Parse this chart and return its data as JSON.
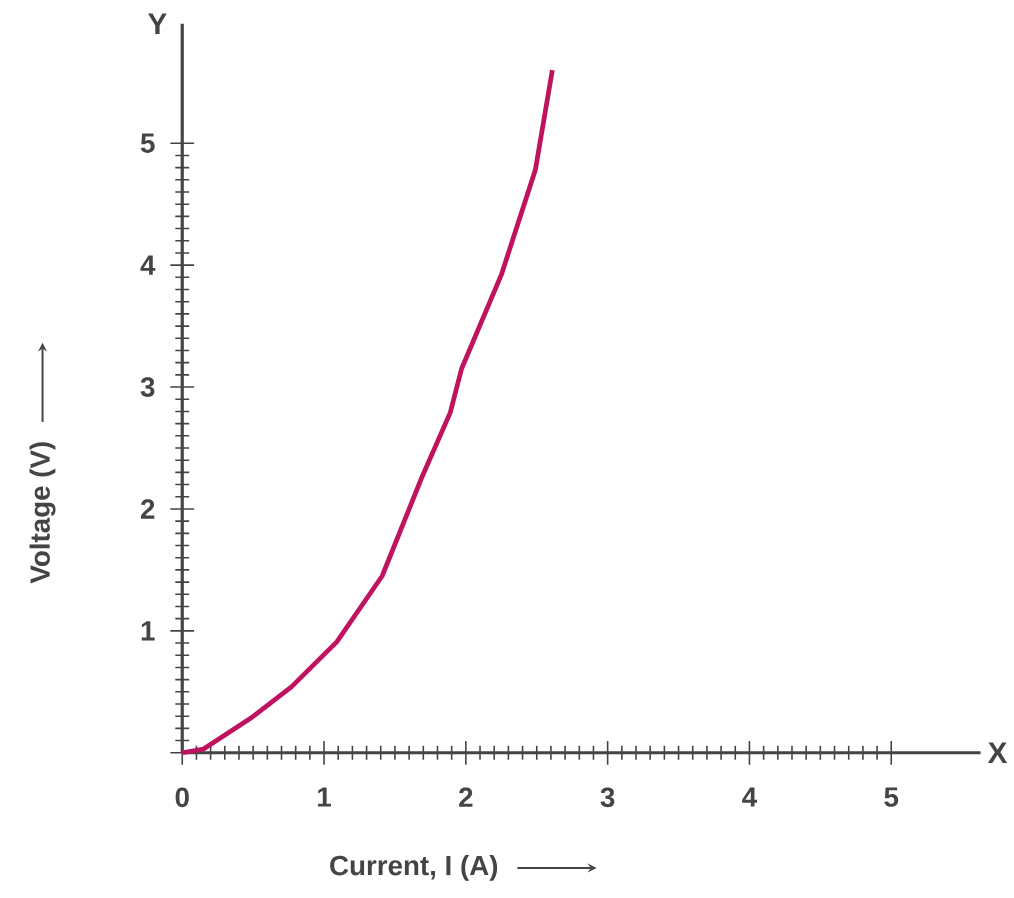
{
  "chart_data": {
    "type": "line",
    "xlabel": "Current, I (A)",
    "ylabel": "Voltage (V)",
    "annotations": [
      "X",
      "Y"
    ],
    "x": [
      0,
      0.15,
      0.49,
      0.77,
      1.09,
      1.41,
      1.69,
      1.89,
      1.97,
      2.25,
      2.49,
      2.61
    ],
    "values": [
      0,
      0.03,
      0.29,
      0.54,
      0.91,
      1.45,
      2.26,
      2.79,
      3.15,
      3.92,
      4.78,
      5.6
    ],
    "color": "#c0135f",
    "xlim": [
      0,
      5.63
    ],
    "ylim": [
      0,
      5.98
    ],
    "xticks": [
      0,
      1,
      2,
      3,
      4,
      5
    ],
    "yticks": [
      {
        "value": 0,
        "label": null
      },
      1,
      2,
      3,
      4,
      5
    ]
  }
}
